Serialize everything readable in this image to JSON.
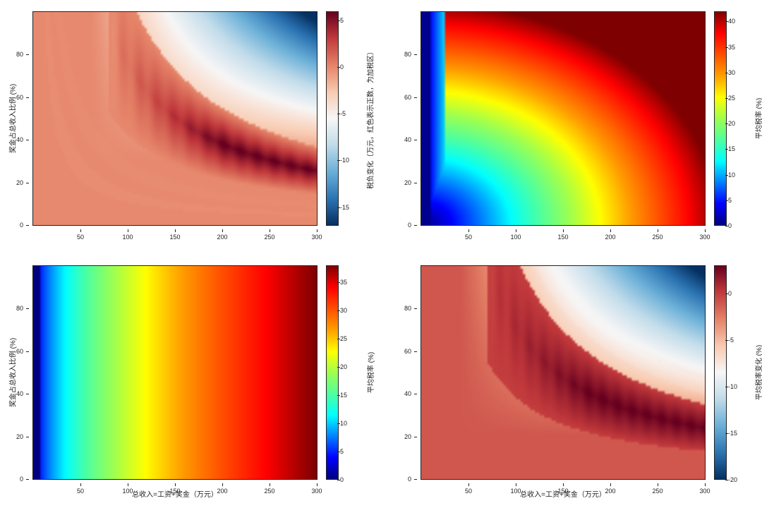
{
  "figure": {
    "background_color": "#ffffff",
    "font_family": "Arial",
    "tick_fontsize": 9,
    "label_fontsize": 10
  },
  "colormaps": {
    "RdBu_r": [
      [
        0.0,
        "#053061"
      ],
      [
        0.1,
        "#2a72b2"
      ],
      [
        0.2,
        "#5ba3cd"
      ],
      [
        0.3,
        "#a7d0e4"
      ],
      [
        0.4,
        "#e2edf2"
      ],
      [
        0.5,
        "#f7f6f6"
      ],
      [
        0.6,
        "#fbd8c3"
      ],
      [
        0.7,
        "#f0a14f"
      ],
      [
        0.75,
        "#e67d4b"
      ],
      [
        0.8,
        "#d55d47"
      ],
      [
        0.9,
        "#b72230"
      ],
      [
        1.0,
        "#67001f"
      ]
    ],
    "RdBu_r_simple": [
      [
        0.0,
        "#053061"
      ],
      [
        0.12,
        "#2a72b2"
      ],
      [
        0.25,
        "#6bb0d8"
      ],
      [
        0.38,
        "#c3ddeb"
      ],
      [
        0.5,
        "#f7f6f6"
      ],
      [
        0.62,
        "#f9cdb4"
      ],
      [
        0.75,
        "#e58368"
      ],
      [
        0.88,
        "#c0383b"
      ],
      [
        1.0,
        "#67001f"
      ]
    ],
    "jet": [
      [
        0.0,
        "#00007f"
      ],
      [
        0.1,
        "#0000ff"
      ],
      [
        0.2,
        "#007fff"
      ],
      [
        0.3,
        "#00ffff"
      ],
      [
        0.4,
        "#4fff9f"
      ],
      [
        0.5,
        "#9fff4f"
      ],
      [
        0.6,
        "#ffff00"
      ],
      [
        0.7,
        "#ff9f00"
      ],
      [
        0.8,
        "#ff4f00"
      ],
      [
        0.9,
        "#ff0000"
      ],
      [
        1.0,
        "#7f0000"
      ]
    ]
  },
  "panels": [
    {
      "id": "top-left",
      "type": "heatmap",
      "colormap": "RdBu_r_simple",
      "xlim": [
        0,
        300
      ],
      "ylim": [
        0,
        100
      ],
      "xticks": [
        50,
        100,
        150,
        200,
        250,
        300
      ],
      "yticks": [
        0,
        20,
        40,
        60,
        80
      ],
      "ylabel": "奖金占总收入比例 (%)",
      "xlabel": null,
      "colorbar": {
        "range": [
          -17,
          6
        ],
        "ticks": [
          -15,
          -10,
          -5,
          0,
          5
        ],
        "label": "税负变化（万元，红色表示正数，为加税区）"
      },
      "field": "tl"
    },
    {
      "id": "top-right",
      "type": "heatmap",
      "colormap": "jet",
      "xlim": [
        0,
        300
      ],
      "ylim": [
        0,
        100
      ],
      "xticks": [
        50,
        100,
        150,
        200,
        250,
        300
      ],
      "yticks": [
        0,
        20,
        40,
        60,
        80
      ],
      "ylabel": null,
      "xlabel": null,
      "colorbar": {
        "range": [
          0,
          42
        ],
        "ticks": [
          0,
          5,
          10,
          15,
          20,
          25,
          30,
          35,
          40
        ],
        "label": "平均税率 (%)"
      },
      "field": "tr"
    },
    {
      "id": "bottom-left",
      "type": "heatmap",
      "colormap": "jet",
      "xlim": [
        0,
        300
      ],
      "ylim": [
        0,
        100
      ],
      "xticks": [
        50,
        100,
        150,
        200,
        250,
        300
      ],
      "yticks": [
        0,
        20,
        40,
        60,
        80
      ],
      "ylabel": "奖金占总收入比例 (%)",
      "xlabel": "总收入=工资+奖金（万元）",
      "colorbar": {
        "range": [
          0,
          38
        ],
        "ticks": [
          0,
          5,
          10,
          15,
          20,
          25,
          30,
          35
        ],
        "label": "平均税率 (%)"
      },
      "field": "bl"
    },
    {
      "id": "bottom-right",
      "type": "heatmap",
      "colormap": "RdBu_r_simple",
      "xlim": [
        0,
        300
      ],
      "ylim": [
        0,
        100
      ],
      "xticks": [
        50,
        100,
        150,
        200,
        250,
        300
      ],
      "yticks": [
        0,
        20,
        40,
        60,
        80
      ],
      "ylabel": null,
      "xlabel": "总收入=工资+奖金（万元）",
      "colorbar": {
        "range": [
          -20,
          3
        ],
        "ticks": [
          -20,
          -15,
          -10,
          -5,
          0
        ],
        "label": "平均税率变化 (%)"
      },
      "field": "br"
    }
  ],
  "heatmap_resolution": {
    "nx": 120,
    "ny": 80
  }
}
